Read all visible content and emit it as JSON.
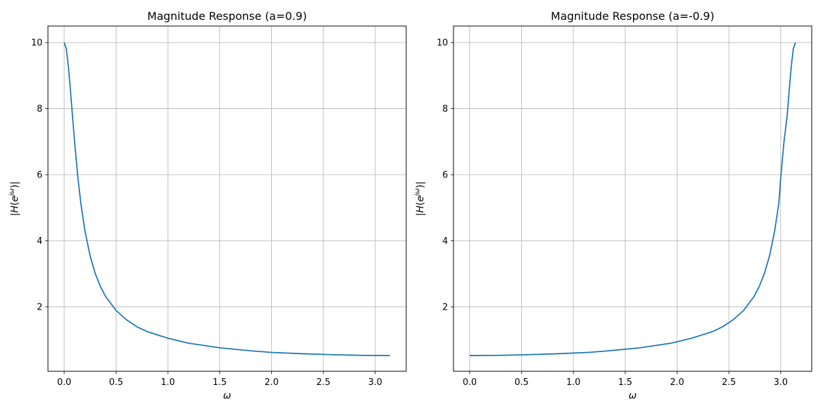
{
  "chart_data": [
    {
      "type": "line",
      "title": "Magnitude Response (a=0.9)",
      "xlabel": "ω",
      "ylabel": "|H(e^{jω})|",
      "xlim": [
        -0.157,
        3.299
      ],
      "ylim": [
        0.05,
        10.5
      ],
      "xticks": [
        0.0,
        0.5,
        1.0,
        1.5,
        2.0,
        2.5,
        3.0
      ],
      "xtick_labels": [
        "0.0",
        "0.5",
        "1.0",
        "1.5",
        "2.0",
        "2.5",
        "3.0"
      ],
      "yticks": [
        2,
        4,
        6,
        8,
        10
      ],
      "ytick_labels": [
        "2",
        "4",
        "6",
        "8",
        "10"
      ],
      "grid": true,
      "series": [
        {
          "color": "#1f77b4",
          "x": [
            0.0,
            0.02,
            0.04,
            0.06,
            0.08,
            0.1,
            0.13,
            0.16,
            0.2,
            0.25,
            0.3,
            0.35,
            0.4,
            0.5,
            0.6,
            0.7,
            0.8,
            1.0,
            1.2,
            1.5,
            1.8,
            2.0,
            2.3,
            2.6,
            2.9,
            3.1416
          ],
          "y": [
            10.0,
            9.81,
            9.28,
            8.55,
            7.77,
            7.0,
            5.97,
            5.14,
            4.3,
            3.54,
            3.0,
            2.61,
            2.31,
            1.89,
            1.61,
            1.4,
            1.25,
            1.05,
            0.9,
            0.76,
            0.67,
            0.62,
            0.58,
            0.55,
            0.53,
            0.526
          ]
        }
      ]
    },
    {
      "type": "line",
      "title": "Magnitude Response (a=-0.9)",
      "xlabel": "ω",
      "ylabel": "|H(e^{jω})|",
      "xlim": [
        -0.157,
        3.299
      ],
      "ylim": [
        0.05,
        10.5
      ],
      "xticks": [
        0.0,
        0.5,
        1.0,
        1.5,
        2.0,
        2.5,
        3.0
      ],
      "xtick_labels": [
        "0.0",
        "0.5",
        "1.0",
        "1.5",
        "2.0",
        "2.5",
        "3.0"
      ],
      "yticks": [
        2,
        4,
        6,
        8,
        10
      ],
      "ytick_labels": [
        "2",
        "4",
        "6",
        "8",
        "10"
      ],
      "grid": true,
      "series": [
        {
          "color": "#1f77b4",
          "x": [
            0.0,
            0.2416,
            0.5416,
            0.8416,
            1.1416,
            1.3416,
            1.6416,
            1.9416,
            2.1416,
            2.3416,
            2.4416,
            2.5416,
            2.6416,
            2.7416,
            2.7916,
            2.8416,
            2.8916,
            2.9416,
            2.9816,
            3.0016,
            3.0316,
            3.0616,
            3.0816,
            3.1016,
            3.1216,
            3.1416
          ],
          "y": [
            0.526,
            0.53,
            0.55,
            0.58,
            0.62,
            0.67,
            0.76,
            0.9,
            1.05,
            1.25,
            1.4,
            1.61,
            1.89,
            2.31,
            2.61,
            3.0,
            3.54,
            4.3,
            5.14,
            5.97,
            7.0,
            7.77,
            8.55,
            9.28,
            9.81,
            10.0
          ]
        }
      ]
    }
  ]
}
